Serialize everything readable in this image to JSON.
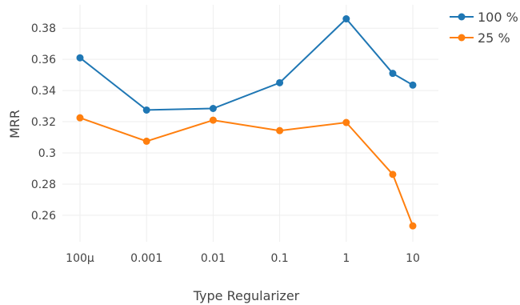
{
  "chart_data": {
    "type": "line",
    "xlabel": "Type Regularizer",
    "ylabel": "MRR",
    "x": [
      0.0001,
      0.001,
      0.01,
      0.1,
      1,
      5,
      10
    ],
    "x_scale": "log",
    "xticks": [
      0.0001,
      0.001,
      0.01,
      0.1,
      1,
      10
    ],
    "xtick_labels": [
      "100μ",
      "0.001",
      "0.01",
      "0.1",
      "1",
      "10"
    ],
    "ylim": [
      0.243,
      0.395
    ],
    "yticks": [
      0.26,
      0.28,
      0.3,
      0.32,
      0.34,
      0.36,
      0.38
    ],
    "ytick_labels": [
      "0.26",
      "0.28",
      "0.3",
      "0.32",
      "0.34",
      "0.36",
      "0.38"
    ],
    "grid": true,
    "legend_position": "top-right",
    "series": [
      {
        "name": "100 %",
        "color": "#1f77b4",
        "values": [
          0.361,
          0.3275,
          0.3285,
          0.345,
          0.386,
          0.351,
          0.3435
        ]
      },
      {
        "name": "25 %",
        "color": "#ff7f0e",
        "values": [
          0.3225,
          0.3075,
          0.321,
          0.3143,
          0.3195,
          0.2862,
          0.2532
        ]
      }
    ]
  }
}
